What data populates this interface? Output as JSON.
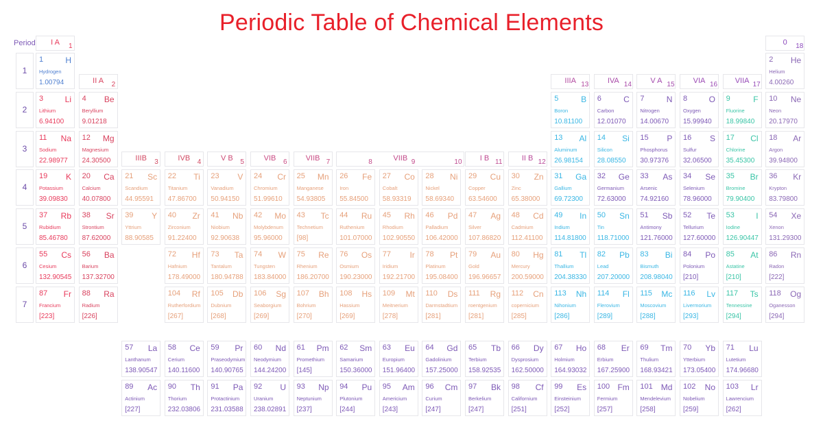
{
  "title": "Periodic Table of Chemical Elements",
  "periods_label": "Periods",
  "periods": [
    "1",
    "2",
    "3",
    "4",
    "5",
    "6",
    "7"
  ],
  "groups": [
    {
      "name": "I A",
      "num": "1",
      "color": "#e83a5b"
    },
    {
      "name": "II A",
      "num": "2",
      "color": "#d8425e"
    },
    {
      "name": "IIIB",
      "num": "3",
      "color": "#d24b64"
    },
    {
      "name": "IVB",
      "num": "4",
      "color": "#d24b64"
    },
    {
      "name": "V B",
      "num": "5",
      "color": "#cc4a74"
    },
    {
      "name": "VIB",
      "num": "6",
      "color": "#c94a83"
    },
    {
      "name": "VIIB",
      "num": "7",
      "color": "#c94a83"
    },
    {
      "name": "VIIB",
      "num": "8",
      "color": "#c24a8a"
    },
    {
      "name": "",
      "num": "9",
      "color": "#c24a8a"
    },
    {
      "name": "",
      "num": "10",
      "color": "#bf4a91"
    },
    {
      "name": "I B",
      "num": "11",
      "color": "#bf4a91"
    },
    {
      "name": "II B",
      "num": "12",
      "color": "#b84a99"
    },
    {
      "name": "IIIA",
      "num": "13",
      "color": "#b24aa0"
    },
    {
      "name": "IVA",
      "num": "14",
      "color": "#a84aa8"
    },
    {
      "name": "V A",
      "num": "15",
      "color": "#a44aad"
    },
    {
      "name": "VIA",
      "num": "16",
      "color": "#9b4ab4"
    },
    {
      "name": "VIIA",
      "num": "17",
      "color": "#964ab8"
    },
    {
      "name": "0",
      "num": "18",
      "color": "#8c4abc"
    }
  ],
  "colors": {
    "alkali": "#e83a5b",
    "alkaline": "#d8425e",
    "transition": "#e6a07a",
    "metalloid": "#e57a5a",
    "post": "#39b6e4",
    "nonmetal": "#7d59b6",
    "halogen": "#39c4a6",
    "noble": "#8b68b5",
    "lan": "#7d59b6",
    "hydrogen": "#4f7fd0",
    "superheavy": "#39b6e4"
  },
  "elements": [
    {
      "n": "1",
      "s": "H",
      "name": "Hydrogen",
      "m": "1.00794",
      "p": 1,
      "g": 1,
      "c": "hydrogen"
    },
    {
      "n": "2",
      "s": "He",
      "name": "Helium",
      "m": "4.00260",
      "p": 1,
      "g": 18,
      "c": "noble"
    },
    {
      "n": "3",
      "s": "Li",
      "name": "Lithium",
      "m": "6.94100",
      "p": 2,
      "g": 1,
      "c": "alkali"
    },
    {
      "n": "4",
      "s": "Be",
      "name": "Beryllium",
      "m": "9.01218",
      "p": 2,
      "g": 2,
      "c": "alkaline"
    },
    {
      "n": "5",
      "s": "B",
      "name": "Boron",
      "m": "10.81100",
      "p": 2,
      "g": 13,
      "c": "post"
    },
    {
      "n": "6",
      "s": "C",
      "name": "Carbon",
      "m": "12.01070",
      "p": 2,
      "g": 14,
      "c": "nonmetal"
    },
    {
      "n": "7",
      "s": "N",
      "name": "Nitrogen",
      "m": "14.00670",
      "p": 2,
      "g": 15,
      "c": "nonmetal"
    },
    {
      "n": "8",
      "s": "O",
      "name": "Oxygen",
      "m": "15.99940",
      "p": 2,
      "g": 16,
      "c": "nonmetal"
    },
    {
      "n": "9",
      "s": "F",
      "name": "Fluorine",
      "m": "18.99840",
      "p": 2,
      "g": 17,
      "c": "halogen"
    },
    {
      "n": "10",
      "s": "Ne",
      "name": "Neon",
      "m": "20.17970",
      "p": 2,
      "g": 18,
      "c": "noble"
    },
    {
      "n": "11",
      "s": "Na",
      "name": "Sodium",
      "m": "22.98977",
      "p": 3,
      "g": 1,
      "c": "alkali"
    },
    {
      "n": "12",
      "s": "Mg",
      "name": "Magnesium",
      "m": "24.30500",
      "p": 3,
      "g": 2,
      "c": "alkaline"
    },
    {
      "n": "13",
      "s": "Al",
      "name": "Aluminum",
      "m": "26.98154",
      "p": 3,
      "g": 13,
      "c": "post"
    },
    {
      "n": "14",
      "s": "Si",
      "name": "Silicon",
      "m": "28.08550",
      "p": 3,
      "g": 14,
      "c": "post"
    },
    {
      "n": "15",
      "s": "P",
      "name": "Phosphorus",
      "m": "30.97376",
      "p": 3,
      "g": 15,
      "c": "nonmetal"
    },
    {
      "n": "16",
      "s": "S",
      "name": "Sulfur",
      "m": "32.06500",
      "p": 3,
      "g": 16,
      "c": "nonmetal"
    },
    {
      "n": "17",
      "s": "Cl",
      "name": "Chlorine",
      "m": "35.45300",
      "p": 3,
      "g": 17,
      "c": "halogen"
    },
    {
      "n": "18",
      "s": "Ar",
      "name": "Argon",
      "m": "39.94800",
      "p": 3,
      "g": 18,
      "c": "noble"
    },
    {
      "n": "19",
      "s": "K",
      "name": "Potassium",
      "m": "39.09830",
      "p": 4,
      "g": 1,
      "c": "alkali"
    },
    {
      "n": "20",
      "s": "Ca",
      "name": "Calcium",
      "m": "40.07800",
      "p": 4,
      "g": 2,
      "c": "alkaline"
    },
    {
      "n": "21",
      "s": "Sc",
      "name": "Scandium",
      "m": "44.95591",
      "p": 4,
      "g": 3,
      "c": "transition"
    },
    {
      "n": "22",
      "s": "Ti",
      "name": "Titanium",
      "m": "47.86700",
      "p": 4,
      "g": 4,
      "c": "transition"
    },
    {
      "n": "23",
      "s": "V",
      "name": "Vanadium",
      "m": "50.94150",
      "p": 4,
      "g": 5,
      "c": "transition"
    },
    {
      "n": "24",
      "s": "Cr",
      "name": "Chromium",
      "m": "51.99610",
      "p": 4,
      "g": 6,
      "c": "transition"
    },
    {
      "n": "25",
      "s": "Mn",
      "name": "Manganese",
      "m": "54.93805",
      "p": 4,
      "g": 7,
      "c": "transition"
    },
    {
      "n": "26",
      "s": "Fe",
      "name": "Iron",
      "m": "55.84500",
      "p": 4,
      "g": 8,
      "c": "transition"
    },
    {
      "n": "27",
      "s": "Co",
      "name": "Cobalt",
      "m": "58.93319",
      "p": 4,
      "g": 9,
      "c": "transition"
    },
    {
      "n": "28",
      "s": "Ni",
      "name": "Nickel",
      "m": "58.69340",
      "p": 4,
      "g": 10,
      "c": "transition"
    },
    {
      "n": "29",
      "s": "Cu",
      "name": "Copper",
      "m": "63.54600",
      "p": 4,
      "g": 11,
      "c": "transition"
    },
    {
      "n": "30",
      "s": "Zn",
      "name": "Zinc",
      "m": "65.38000",
      "p": 4,
      "g": 12,
      "c": "transition"
    },
    {
      "n": "31",
      "s": "Ga",
      "name": "Gallium",
      "m": "69.72300",
      "p": 4,
      "g": 13,
      "c": "post"
    },
    {
      "n": "32",
      "s": "Ge",
      "name": "Germanium",
      "m": "72.63000",
      "p": 4,
      "g": 14,
      "c": "nonmetal"
    },
    {
      "n": "33",
      "s": "As",
      "name": "Arsenic",
      "m": "74.92160",
      "p": 4,
      "g": 15,
      "c": "nonmetal"
    },
    {
      "n": "34",
      "s": "Se",
      "name": "Selenium",
      "m": "78.96000",
      "p": 4,
      "g": 16,
      "c": "nonmetal"
    },
    {
      "n": "35",
      "s": "Br",
      "name": "Bromine",
      "m": "79.90400",
      "p": 4,
      "g": 17,
      "c": "halogen"
    },
    {
      "n": "36",
      "s": "Kr",
      "name": "Krypton",
      "m": "83.79800",
      "p": 4,
      "g": 18,
      "c": "noble"
    },
    {
      "n": "37",
      "s": "Rb",
      "name": "Rubidium",
      "m": "85.46780",
      "p": 5,
      "g": 1,
      "c": "alkali"
    },
    {
      "n": "38",
      "s": "Sr",
      "name": "Strontium",
      "m": "87.62000",
      "p": 5,
      "g": 2,
      "c": "alkaline"
    },
    {
      "n": "39",
      "s": "Y",
      "name": "Yttrium",
      "m": "88.90585",
      "p": 5,
      "g": 3,
      "c": "transition"
    },
    {
      "n": "40",
      "s": "Zr",
      "name": "Zirconium",
      "m": "91.22400",
      "p": 5,
      "g": 4,
      "c": "transition"
    },
    {
      "n": "41",
      "s": "Nb",
      "name": "Niobium",
      "m": "92.90638",
      "p": 5,
      "g": 5,
      "c": "transition"
    },
    {
      "n": "42",
      "s": "Mo",
      "name": "Molybdenum",
      "m": "95.96000",
      "p": 5,
      "g": 6,
      "c": "transition"
    },
    {
      "n": "43",
      "s": "Tc",
      "name": "Technetium",
      "m": "[98]",
      "p": 5,
      "g": 7,
      "c": "transition"
    },
    {
      "n": "44",
      "s": "Ru",
      "name": "Ruthenium",
      "m": "101.07000",
      "p": 5,
      "g": 8,
      "c": "transition"
    },
    {
      "n": "45",
      "s": "Rh",
      "name": "Rhodium",
      "m": "102.90550",
      "p": 5,
      "g": 9,
      "c": "transition"
    },
    {
      "n": "46",
      "s": "Pd",
      "name": "Palladium",
      "m": "106.42000",
      "p": 5,
      "g": 10,
      "c": "transition"
    },
    {
      "n": "47",
      "s": "Ag",
      "name": "Silver",
      "m": "107.86820",
      "p": 5,
      "g": 11,
      "c": "transition"
    },
    {
      "n": "48",
      "s": "Cd",
      "name": "Cadmium",
      "m": "112.41100",
      "p": 5,
      "g": 12,
      "c": "transition"
    },
    {
      "n": "49",
      "s": "In",
      "name": "Indium",
      "m": "114.81800",
      "p": 5,
      "g": 13,
      "c": "post"
    },
    {
      "n": "50",
      "s": "Sn",
      "name": "Tin",
      "m": "118.71000",
      "p": 5,
      "g": 14,
      "c": "post"
    },
    {
      "n": "51",
      "s": "Sb",
      "name": "Antimony",
      "m": "121.76000",
      "p": 5,
      "g": 15,
      "c": "nonmetal"
    },
    {
      "n": "52",
      "s": "Te",
      "name": "Tellurium",
      "m": "127.60000",
      "p": 5,
      "g": 16,
      "c": "nonmetal"
    },
    {
      "n": "53",
      "s": "I",
      "name": "Iodine",
      "m": "126.90447",
      "p": 5,
      "g": 17,
      "c": "halogen"
    },
    {
      "n": "54",
      "s": "Xe",
      "name": "Xenon",
      "m": "131.29300",
      "p": 5,
      "g": 18,
      "c": "noble"
    },
    {
      "n": "55",
      "s": "Cs",
      "name": "Cesium",
      "m": "132.90545",
      "p": 6,
      "g": 1,
      "c": "alkali"
    },
    {
      "n": "56",
      "s": "Ba",
      "name": "Barium",
      "m": "137.32700",
      "p": 6,
      "g": 2,
      "c": "alkaline"
    },
    {
      "n": "72",
      "s": "Hf",
      "name": "Hafnium",
      "m": "178.49000",
      "p": 6,
      "g": 4,
      "c": "transition"
    },
    {
      "n": "73",
      "s": "Ta",
      "name": "Tantalum",
      "m": "180.94788",
      "p": 6,
      "g": 5,
      "c": "transition"
    },
    {
      "n": "74",
      "s": "W",
      "name": "Tungsten",
      "m": "183.84000",
      "p": 6,
      "g": 6,
      "c": "transition"
    },
    {
      "n": "75",
      "s": "Re",
      "name": "Rhenium",
      "m": "186.20700",
      "p": 6,
      "g": 7,
      "c": "transition"
    },
    {
      "n": "76",
      "s": "Os",
      "name": "Osmium",
      "m": "190.23000",
      "p": 6,
      "g": 8,
      "c": "transition"
    },
    {
      "n": "77",
      "s": "Ir",
      "name": "Iridium",
      "m": "192.21700",
      "p": 6,
      "g": 9,
      "c": "transition"
    },
    {
      "n": "78",
      "s": "Pt",
      "name": "Platinum",
      "m": "195.08400",
      "p": 6,
      "g": 10,
      "c": "transition"
    },
    {
      "n": "79",
      "s": "Au",
      "name": "Gold",
      "m": "196.96657",
      "p": 6,
      "g": 11,
      "c": "transition"
    },
    {
      "n": "80",
      "s": "Hg",
      "name": "Mercury",
      "m": "200.59000",
      "p": 6,
      "g": 12,
      "c": "transition"
    },
    {
      "n": "81",
      "s": "Tl",
      "name": "Thallium",
      "m": "204.38330",
      "p": 6,
      "g": 13,
      "c": "post"
    },
    {
      "n": "82",
      "s": "Pb",
      "name": "Lead",
      "m": "207.20000",
      "p": 6,
      "g": 14,
      "c": "post"
    },
    {
      "n": "83",
      "s": "Bi",
      "name": "Bismuth",
      "m": "208.98040",
      "p": 6,
      "g": 15,
      "c": "post"
    },
    {
      "n": "84",
      "s": "Po",
      "name": "Polonium",
      "m": "[210]",
      "p": 6,
      "g": 16,
      "c": "nonmetal"
    },
    {
      "n": "85",
      "s": "At",
      "name": "Astatine",
      "m": "[210]",
      "p": 6,
      "g": 17,
      "c": "halogen"
    },
    {
      "n": "86",
      "s": "Rn",
      "name": "Radon",
      "m": "[222]",
      "p": 6,
      "g": 18,
      "c": "noble"
    },
    {
      "n": "87",
      "s": "Fr",
      "name": "Francium",
      "m": "[223]",
      "p": 7,
      "g": 1,
      "c": "alkali"
    },
    {
      "n": "88",
      "s": "Ra",
      "name": "Radium",
      "m": "[226]",
      "p": 7,
      "g": 2,
      "c": "alkaline"
    },
    {
      "n": "104",
      "s": "Rf",
      "name": "Rutherfordium",
      "m": "[267]",
      "p": 7,
      "g": 4,
      "c": "transition"
    },
    {
      "n": "105",
      "s": "Db",
      "name": "Dubnium",
      "m": "[268]",
      "p": 7,
      "g": 5,
      "c": "transition"
    },
    {
      "n": "106",
      "s": "Sg",
      "name": "Seaborgium",
      "m": "[269]",
      "p": 7,
      "g": 6,
      "c": "transition"
    },
    {
      "n": "107",
      "s": "Bh",
      "name": "Bohrium",
      "m": "[270]",
      "p": 7,
      "g": 7,
      "c": "transition"
    },
    {
      "n": "108",
      "s": "Hs",
      "name": "Hassium",
      "m": "[269]",
      "p": 7,
      "g": 8,
      "c": "transition"
    },
    {
      "n": "109",
      "s": "Mt",
      "name": "Meitnerium",
      "m": "[278]",
      "p": 7,
      "g": 9,
      "c": "transition"
    },
    {
      "n": "110",
      "s": "Ds",
      "name": "Darmstadtium",
      "m": "[281]",
      "p": 7,
      "g": 10,
      "c": "transition"
    },
    {
      "n": "111",
      "s": "Rg",
      "name": "roentgenium",
      "m": "[281]",
      "p": 7,
      "g": 11,
      "c": "transition"
    },
    {
      "n": "112",
      "s": "Cn",
      "name": "copernicium",
      "m": "[285]",
      "p": 7,
      "g": 12,
      "c": "transition"
    },
    {
      "n": "113",
      "s": "Nh",
      "name": "Nihonium",
      "m": "[286]",
      "p": 7,
      "g": 13,
      "c": "superheavy"
    },
    {
      "n": "114",
      "s": "Fl",
      "name": "Flerovium",
      "m": "[289]",
      "p": 7,
      "g": 14,
      "c": "superheavy"
    },
    {
      "n": "115",
      "s": "Mc",
      "name": "Moscovium",
      "m": "[288]",
      "p": 7,
      "g": 15,
      "c": "superheavy"
    },
    {
      "n": "116",
      "s": "Lv",
      "name": "Livermorium",
      "m": "[293]",
      "p": 7,
      "g": 16,
      "c": "superheavy"
    },
    {
      "n": "117",
      "s": "Ts",
      "name": "Tennessine",
      "m": "[294]",
      "p": 7,
      "g": 17,
      "c": "halogen"
    },
    {
      "n": "118",
      "s": "Og",
      "name": "Oganesson",
      "m": "[294]",
      "p": 7,
      "g": 18,
      "c": "noble"
    }
  ],
  "lanthanides": [
    {
      "n": "57",
      "s": "La",
      "name": "Lanthanum",
      "m": "138.90547"
    },
    {
      "n": "58",
      "s": "Ce",
      "name": "Cerium",
      "m": "140.11600"
    },
    {
      "n": "59",
      "s": "Pr",
      "name": "Praseodymium",
      "m": "140.90765"
    },
    {
      "n": "60",
      "s": "Nd",
      "name": "Neodymium",
      "m": "144.24200"
    },
    {
      "n": "61",
      "s": "Pm",
      "name": "Promethium",
      "m": "[145]"
    },
    {
      "n": "62",
      "s": "Sm",
      "name": "Samarium",
      "m": "150.36000"
    },
    {
      "n": "63",
      "s": "Eu",
      "name": "Europium",
      "m": "151.96400"
    },
    {
      "n": "64",
      "s": "Gd",
      "name": "Gadolinium",
      "m": "157.25000"
    },
    {
      "n": "65",
      "s": "Tb",
      "name": "Terbium",
      "m": "158.92535"
    },
    {
      "n": "66",
      "s": "Dy",
      "name": "Dysprosium",
      "m": "162.50000"
    },
    {
      "n": "67",
      "s": "Ho",
      "name": "Holmium",
      "m": "164.93032"
    },
    {
      "n": "68",
      "s": "Er",
      "name": "Erbium",
      "m": "167.25900"
    },
    {
      "n": "69",
      "s": "Tm",
      "name": "Thulium",
      "m": "168.93421"
    },
    {
      "n": "70",
      "s": "Yb",
      "name": "Ytterbium",
      "m": "173.05400"
    },
    {
      "n": "71",
      "s": "Lu",
      "name": "Lutetium",
      "m": "174.96680"
    }
  ],
  "actinides": [
    {
      "n": "89",
      "s": "Ac",
      "name": "Actinium",
      "m": "[227]"
    },
    {
      "n": "90",
      "s": "Th",
      "name": "Thorium",
      "m": "232.03806"
    },
    {
      "n": "91",
      "s": "Pa",
      "name": "Protactinium",
      "m": "231.03588"
    },
    {
      "n": "92",
      "s": "U",
      "name": "Uranium",
      "m": "238.02891"
    },
    {
      "n": "93",
      "s": "Np",
      "name": "Neptunium",
      "m": "[237]"
    },
    {
      "n": "94",
      "s": "Pu",
      "name": "Plutonium",
      "m": "[244]"
    },
    {
      "n": "95",
      "s": "Am",
      "name": "Americium",
      "m": "[243]"
    },
    {
      "n": "96",
      "s": "Cm",
      "name": "Curium",
      "m": "[247]"
    },
    {
      "n": "97",
      "s": "Bk",
      "name": "Berkelium",
      "m": "[247]"
    },
    {
      "n": "98",
      "s": "Cf",
      "name": "Californium",
      "m": "[251]"
    },
    {
      "n": "99",
      "s": "Es",
      "name": "Einsteinium",
      "m": "[252]"
    },
    {
      "n": "100",
      "s": "Fm",
      "name": "Fermium",
      "m": "[257]"
    },
    {
      "n": "101",
      "s": "Md",
      "name": "Mendelevium",
      "m": "[258]"
    },
    {
      "n": "102",
      "s": "No",
      "name": "Nobelium",
      "m": "[259]"
    },
    {
      "n": "103",
      "s": "Lr",
      "name": "Lawrencium",
      "m": "[262]"
    }
  ]
}
